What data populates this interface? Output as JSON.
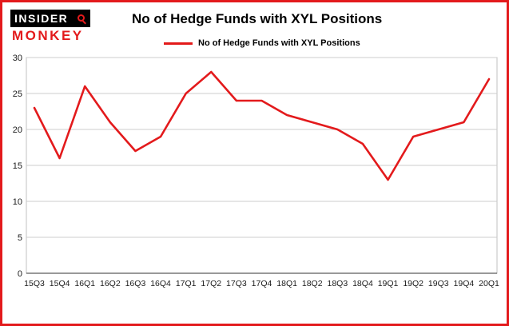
{
  "brand": {
    "line1": "INSIDER",
    "line2": "MONKEY"
  },
  "header": {
    "title": "No of Hedge Funds with XYL Positions"
  },
  "legend": {
    "label": "No of Hedge Funds with XYL Positions"
  },
  "colors": {
    "accent": "#e31a1c",
    "line": "#e31a1c",
    "grid": "#cccccc",
    "plot_border": "#c0c0c0",
    "axis": "#333333"
  },
  "chart_data": {
    "type": "line",
    "title": "No of Hedge Funds with XYL Positions",
    "categories": [
      "15Q3",
      "15Q4",
      "16Q1",
      "16Q2",
      "16Q3",
      "16Q4",
      "17Q1",
      "17Q2",
      "17Q3",
      "17Q4",
      "18Q1",
      "18Q2",
      "18Q3",
      "18Q4",
      "19Q1",
      "19Q2",
      "19Q3",
      "19Q4",
      "20Q1"
    ],
    "values": [
      23,
      16,
      26,
      21,
      17,
      19,
      25,
      28,
      24,
      24,
      22,
      21,
      20,
      18,
      13,
      19,
      20,
      21,
      27
    ],
    "xlabel": "",
    "ylabel": "",
    "ylim": [
      0,
      30
    ],
    "ytick_step": 5,
    "grid": true,
    "legend_position": "top-left"
  }
}
